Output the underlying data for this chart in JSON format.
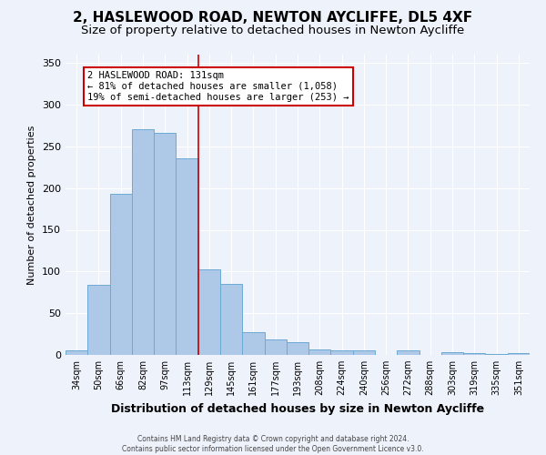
{
  "title": "2, HASLEWOOD ROAD, NEWTON AYCLIFFE, DL5 4XF",
  "subtitle": "Size of property relative to detached houses in Newton Aycliffe",
  "xlabel": "Distribution of detached houses by size in Newton Aycliffe",
  "ylabel": "Number of detached properties",
  "categories": [
    "34sqm",
    "50sqm",
    "66sqm",
    "82sqm",
    "97sqm",
    "113sqm",
    "129sqm",
    "145sqm",
    "161sqm",
    "177sqm",
    "193sqm",
    "208sqm",
    "224sqm",
    "240sqm",
    "256sqm",
    "272sqm",
    "288sqm",
    "303sqm",
    "319sqm",
    "335sqm",
    "351sqm"
  ],
  "values": [
    6,
    84,
    193,
    271,
    266,
    236,
    103,
    85,
    27,
    19,
    15,
    7,
    5,
    5,
    0,
    5,
    0,
    3,
    2,
    1,
    2
  ],
  "bar_color": "#aec9e8",
  "bar_edge_color": "#6aaad4",
  "vline_x_index": 6,
  "vline_color": "#cc0000",
  "annotation_title": "2 HASLEWOOD ROAD: 131sqm",
  "annotation_line1": "← 81% of detached houses are smaller (1,058)",
  "annotation_line2": "19% of semi-detached houses are larger (253) →",
  "annotation_box_color": "#cc0000",
  "ylim": [
    0,
    360
  ],
  "yticks": [
    0,
    50,
    100,
    150,
    200,
    250,
    300,
    350
  ],
  "footer1": "Contains HM Land Registry data © Crown copyright and database right 2024.",
  "footer2": "Contains public sector information licensed under the Open Government Licence v3.0.",
  "bg_color": "#eef2fb",
  "title_fontsize": 11,
  "subtitle_fontsize": 9.5
}
